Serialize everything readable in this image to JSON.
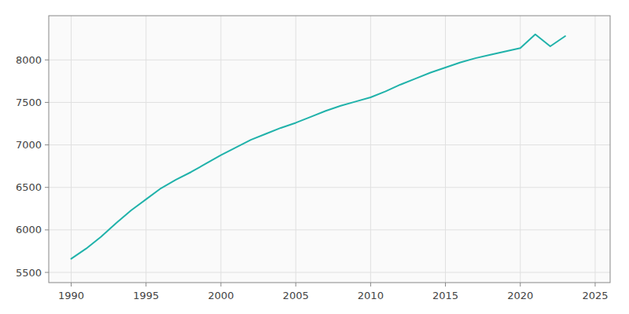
{
  "chart_data": {
    "type": "line",
    "x": [
      1990,
      1991,
      1992,
      1993,
      1994,
      1995,
      1996,
      1997,
      1998,
      1999,
      2000,
      2001,
      2002,
      2003,
      2004,
      2005,
      2006,
      2007,
      2008,
      2009,
      2010,
      2011,
      2012,
      2013,
      2014,
      2015,
      2016,
      2017,
      2018,
      2019,
      2020,
      2021,
      2022,
      2023
    ],
    "values": [
      5660,
      5780,
      5920,
      6080,
      6230,
      6360,
      6490,
      6590,
      6680,
      6780,
      6880,
      6970,
      7060,
      7130,
      7200,
      7260,
      7330,
      7400,
      7460,
      7510,
      7560,
      7630,
      7710,
      7780,
      7850,
      7910,
      7970,
      8020,
      8060,
      8100,
      8140,
      8300,
      8160,
      8280
    ],
    "color": "#20B2AA",
    "xlim": [
      1988.5,
      2026
    ],
    "ylim": [
      5380,
      8520
    ],
    "xticks": [
      1990,
      1995,
      2000,
      2005,
      2010,
      2015,
      2020,
      2025
    ],
    "yticks": [
      5500,
      6000,
      6500,
      7000,
      7500,
      8000
    ],
    "grid": true
  }
}
